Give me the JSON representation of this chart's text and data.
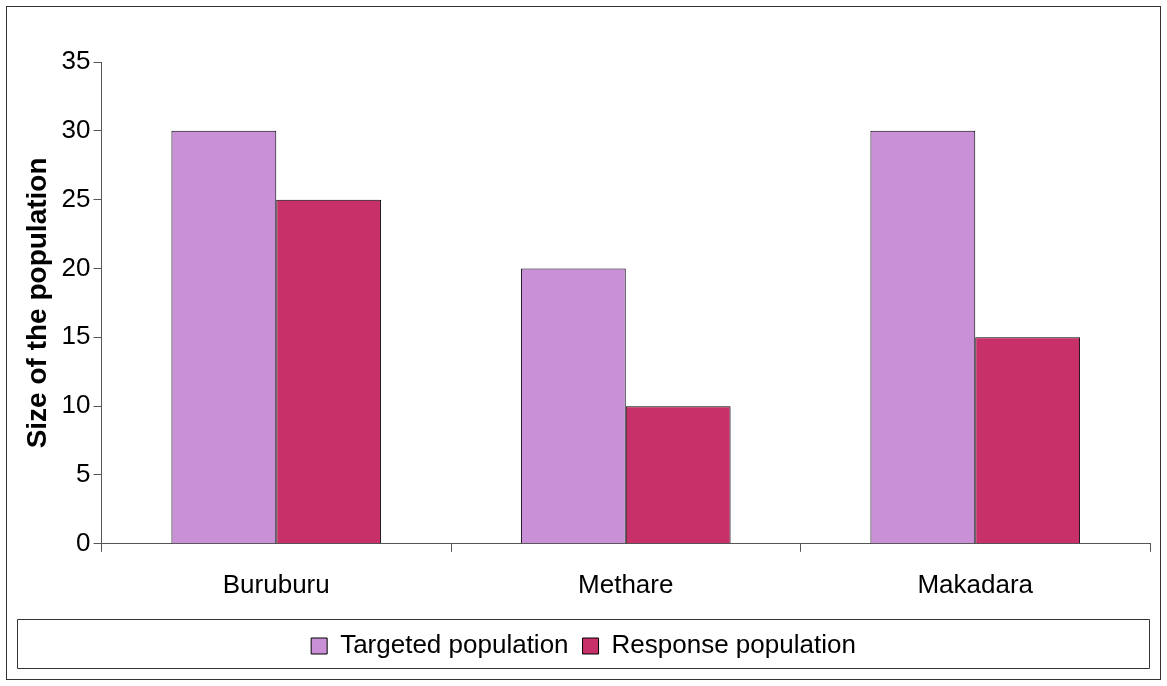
{
  "chart_data": {
    "type": "bar",
    "ylabel": "Size of the population",
    "categories": [
      "Buruburu",
      "Methare",
      "Makadara"
    ],
    "series": [
      {
        "name": "Targeted population",
        "color": "#c990d8",
        "values": [
          30,
          20,
          30
        ]
      },
      {
        "name": "Response population",
        "color": "#c8306a",
        "values": [
          25,
          10,
          15
        ]
      }
    ],
    "ylim": [
      0,
      35
    ],
    "yticks": [
      0,
      5,
      10,
      15,
      20,
      25,
      30,
      35
    ],
    "grid": false,
    "legend": "bottom"
  }
}
